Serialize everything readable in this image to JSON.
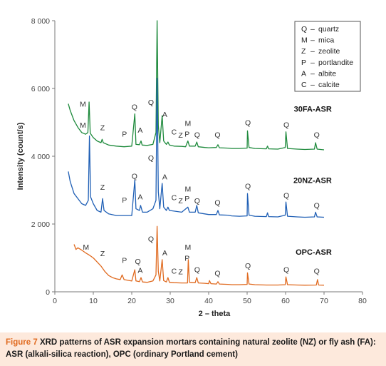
{
  "caption": {
    "label": "Figure 7",
    "line1": "XRD patterns of ASR expansion mortars containing natural zeolite (NZ) or fly ash (FA):",
    "line2": "ASR (alkali-silica reaction), OPC (ordinary Portland cement)"
  },
  "chart_data": {
    "type": "line",
    "xlabel": "2 – theta",
    "ylabel": "Intensity (count/s)",
    "xlim": [
      0,
      80
    ],
    "ylim": [
      0,
      8000
    ],
    "xticks": [
      0,
      10,
      20,
      30,
      40,
      50,
      60,
      70,
      80
    ],
    "yticks": [
      0,
      2000,
      4000,
      6000,
      8000
    ],
    "ytick_labels": [
      "0",
      "2 000",
      "4 000",
      "6 000",
      "8 000"
    ],
    "grid": false,
    "legend_position": "top-right",
    "legend": [
      {
        "symbol": "Q",
        "name": "quartz"
      },
      {
        "symbol": "M",
        "name": "mica"
      },
      {
        "symbol": "Z",
        "name": "zeolite"
      },
      {
        "symbol": "P",
        "name": "portlandite"
      },
      {
        "symbol": "A",
        "name": "albite"
      },
      {
        "symbol": "C",
        "name": "calcite"
      }
    ],
    "series": [
      {
        "name": "30FA-ASR",
        "color": "#1e8a3c",
        "points": [
          [
            3.5,
            5550
          ],
          [
            4,
            5350
          ],
          [
            5,
            5050
          ],
          [
            6,
            4850
          ],
          [
            7,
            4700
          ],
          [
            8,
            4650
          ],
          [
            8.6,
            4700
          ],
          [
            8.9,
            5600
          ],
          [
            9.2,
            4680
          ],
          [
            10,
            4550
          ],
          [
            11,
            4450
          ],
          [
            12,
            4400
          ],
          [
            12.3,
            4500
          ],
          [
            12.6,
            4400
          ],
          [
            14,
            4330
          ],
          [
            16,
            4300
          ],
          [
            18,
            4280
          ],
          [
            20,
            4300
          ],
          [
            20.8,
            5250
          ],
          [
            21.1,
            4350
          ],
          [
            22,
            4340
          ],
          [
            22.4,
            4450
          ],
          [
            22.7,
            4330
          ],
          [
            24,
            4320
          ],
          [
            25.5,
            4350
          ],
          [
            26.3,
            4700
          ],
          [
            26.6,
            8000
          ],
          [
            26.9,
            4900
          ],
          [
            27.3,
            4400
          ],
          [
            27.9,
            5200
          ],
          [
            28.3,
            4450
          ],
          [
            29,
            4350
          ],
          [
            29.4,
            4420
          ],
          [
            29.8,
            4330
          ],
          [
            31,
            4300
          ],
          [
            33,
            4290
          ],
          [
            34,
            4280
          ],
          [
            34.6,
            4450
          ],
          [
            35,
            4300
          ],
          [
            36.5,
            4300
          ],
          [
            36.9,
            4420
          ],
          [
            37.3,
            4280
          ],
          [
            39,
            4260
          ],
          [
            40,
            4250
          ],
          [
            42,
            4260
          ],
          [
            42.4,
            4340
          ],
          [
            42.8,
            4250
          ],
          [
            45,
            4240
          ],
          [
            46,
            4230
          ],
          [
            48,
            4230
          ],
          [
            50,
            4240
          ],
          [
            50.1,
            4750
          ],
          [
            50.5,
            4260
          ],
          [
            52,
            4230
          ],
          [
            55,
            4220
          ],
          [
            55.3,
            4300
          ],
          [
            55.6,
            4220
          ],
          [
            58,
            4210
          ],
          [
            59.9,
            4260
          ],
          [
            60.1,
            4720
          ],
          [
            60.5,
            4230
          ],
          [
            63,
            4210
          ],
          [
            65,
            4200
          ],
          [
            67.5,
            4210
          ],
          [
            67.8,
            4400
          ],
          [
            68.2,
            4210
          ],
          [
            70,
            4190
          ]
        ]
      },
      {
        "name": "20NZ-ASR",
        "color": "#1f5fb5",
        "points": [
          [
            3.5,
            3550
          ],
          [
            4,
            3250
          ],
          [
            5,
            2900
          ],
          [
            6,
            2750
          ],
          [
            7,
            2600
          ],
          [
            8,
            2550
          ],
          [
            8.7,
            2700
          ],
          [
            9,
            4600
          ],
          [
            9.3,
            2800
          ],
          [
            10,
            2600
          ],
          [
            11,
            2400
          ],
          [
            12,
            2350
          ],
          [
            12.4,
            2750
          ],
          [
            12.8,
            2400
          ],
          [
            14,
            2300
          ],
          [
            16,
            2250
          ],
          [
            18,
            2250
          ],
          [
            20,
            2250
          ],
          [
            20.8,
            3300
          ],
          [
            21.1,
            2450
          ],
          [
            22,
            2400
          ],
          [
            22.3,
            2550
          ],
          [
            22.8,
            2350
          ],
          [
            24,
            2350
          ],
          [
            25.5,
            2450
          ],
          [
            26.3,
            2700
          ],
          [
            26.6,
            6300
          ],
          [
            26.9,
            2950
          ],
          [
            27.3,
            2450
          ],
          [
            27.9,
            3200
          ],
          [
            28.3,
            2500
          ],
          [
            29,
            2400
          ],
          [
            29.4,
            2500
          ],
          [
            29.8,
            2400
          ],
          [
            31,
            2380
          ],
          [
            33,
            2350
          ],
          [
            34.6,
            2500
          ],
          [
            35,
            2350
          ],
          [
            36.5,
            2350
          ],
          [
            36.9,
            2550
          ],
          [
            37.3,
            2330
          ],
          [
            39,
            2300
          ],
          [
            40,
            2280
          ],
          [
            42,
            2280
          ],
          [
            42.4,
            2400
          ],
          [
            42.8,
            2270
          ],
          [
            45,
            2260
          ],
          [
            46,
            2240
          ],
          [
            48,
            2230
          ],
          [
            50,
            2240
          ],
          [
            50.1,
            2900
          ],
          [
            50.5,
            2260
          ],
          [
            52,
            2230
          ],
          [
            55,
            2220
          ],
          [
            55.3,
            2330
          ],
          [
            55.6,
            2220
          ],
          [
            58,
            2210
          ],
          [
            59.9,
            2260
          ],
          [
            60.1,
            2650
          ],
          [
            60.5,
            2230
          ],
          [
            63,
            2210
          ],
          [
            65,
            2200
          ],
          [
            67.5,
            2210
          ],
          [
            67.8,
            2350
          ],
          [
            68.2,
            2210
          ],
          [
            70,
            2200
          ]
        ]
      },
      {
        "name": "OPC-ASR",
        "color": "#e06a1f",
        "points": [
          [
            5,
            1400
          ],
          [
            5.5,
            1250
          ],
          [
            6,
            1300
          ],
          [
            7,
            1230
          ],
          [
            8,
            1150
          ],
          [
            9,
            1080
          ],
          [
            10,
            1000
          ],
          [
            11,
            880
          ],
          [
            12,
            760
          ],
          [
            13,
            600
          ],
          [
            14,
            480
          ],
          [
            15,
            420
          ],
          [
            16,
            380
          ],
          [
            17,
            360
          ],
          [
            17.5,
            500
          ],
          [
            18,
            360
          ],
          [
            19,
            340
          ],
          [
            20,
            320
          ],
          [
            20.8,
            650
          ],
          [
            21.1,
            320
          ],
          [
            22,
            300
          ],
          [
            22.4,
            420
          ],
          [
            22.8,
            290
          ],
          [
            24,
            280
          ],
          [
            25.5,
            320
          ],
          [
            26.3,
            500
          ],
          [
            26.6,
            1930
          ],
          [
            26.9,
            600
          ],
          [
            27.3,
            320
          ],
          [
            27.9,
            950
          ],
          [
            28.3,
            330
          ],
          [
            29,
            290
          ],
          [
            29.4,
            420
          ],
          [
            29.8,
            280
          ],
          [
            31,
            270
          ],
          [
            33,
            260
          ],
          [
            34.5,
            260
          ],
          [
            34.7,
            950
          ],
          [
            35,
            280
          ],
          [
            36.5,
            270
          ],
          [
            36.9,
            420
          ],
          [
            37.3,
            260
          ],
          [
            39,
            250
          ],
          [
            40,
            240
          ],
          [
            40.2,
            330
          ],
          [
            40.6,
            240
          ],
          [
            42,
            230
          ],
          [
            42.4,
            300
          ],
          [
            42.8,
            230
          ],
          [
            45,
            220
          ],
          [
            46,
            210
          ],
          [
            48,
            210
          ],
          [
            50,
            220
          ],
          [
            50.1,
            560
          ],
          [
            50.5,
            230
          ],
          [
            52,
            210
          ],
          [
            55,
            200
          ],
          [
            58,
            200
          ],
          [
            59.9,
            210
          ],
          [
            60.1,
            440
          ],
          [
            60.5,
            210
          ],
          [
            63,
            200
          ],
          [
            65,
            195
          ],
          [
            68,
            200
          ],
          [
            68.3,
            360
          ],
          [
            68.6,
            200
          ],
          [
            70,
            195
          ]
        ]
      }
    ],
    "series_labels": [
      {
        "text": "30FA-ASR",
        "x": 72,
        "y": 5400
      },
      {
        "text": "20NZ-ASR",
        "x": 72,
        "y": 3300
      },
      {
        "text": "OPC-ASR",
        "x": 72,
        "y": 1180
      }
    ],
    "annotations": [
      {
        "text": "M",
        "x": 7.3,
        "y": 5550
      },
      {
        "text": "Z",
        "x": 12.4,
        "y": 4850
      },
      {
        "text": "P",
        "x": 18.1,
        "y": 4660
      },
      {
        "text": "Q",
        "x": 20.7,
        "y": 5460
      },
      {
        "text": "A",
        "x": 22.2,
        "y": 4780
      },
      {
        "text": "Q",
        "x": 25.0,
        "y": 5600
      },
      {
        "text": "A",
        "x": 28.6,
        "y": 5240
      },
      {
        "text": "C",
        "x": 31.0,
        "y": 4730
      },
      {
        "text": "Z",
        "x": 32.7,
        "y": 4630
      },
      {
        "text": "P",
        "x": 34.4,
        "y": 4660
      },
      {
        "text": "M",
        "x": 34.6,
        "y": 4980
      },
      {
        "text": "Q",
        "x": 37.0,
        "y": 4640
      },
      {
        "text": "Q",
        "x": 42.3,
        "y": 4640
      },
      {
        "text": "Q",
        "x": 50.2,
        "y": 5000
      },
      {
        "text": "Q",
        "x": 60.2,
        "y": 4940
      },
      {
        "text": "Q",
        "x": 68.1,
        "y": 4640
      },
      {
        "text": "M",
        "x": 7.3,
        "y": 4930
      },
      {
        "text": "Z",
        "x": 12.4,
        "y": 3090
      },
      {
        "text": "P",
        "x": 18.1,
        "y": 2720
      },
      {
        "text": "Q",
        "x": 20.7,
        "y": 3420
      },
      {
        "text": "A",
        "x": 22.2,
        "y": 2810
      },
      {
        "text": "Q",
        "x": 25.0,
        "y": 3960
      },
      {
        "text": "A",
        "x": 28.6,
        "y": 3400
      },
      {
        "text": "C",
        "x": 31.0,
        "y": 2790
      },
      {
        "text": "Z",
        "x": 32.7,
        "y": 2700
      },
      {
        "text": "P",
        "x": 34.4,
        "y": 2760
      },
      {
        "text": "M",
        "x": 34.6,
        "y": 3040
      },
      {
        "text": "Q",
        "x": 37.0,
        "y": 2700
      },
      {
        "text": "Q",
        "x": 42.3,
        "y": 2640
      },
      {
        "text": "Q",
        "x": 50.2,
        "y": 3130
      },
      {
        "text": "Q",
        "x": 60.2,
        "y": 2850
      },
      {
        "text": "Q",
        "x": 68.1,
        "y": 2560
      },
      {
        "text": "M",
        "x": 8.1,
        "y": 1330
      },
      {
        "text": "Z",
        "x": 12.4,
        "y": 1140
      },
      {
        "text": "P",
        "x": 18.1,
        "y": 940
      },
      {
        "text": "Q",
        "x": 21.6,
        "y": 910
      },
      {
        "text": "A",
        "x": 22.2,
        "y": 640
      },
      {
        "text": "Q",
        "x": 25.0,
        "y": 1570
      },
      {
        "text": "A",
        "x": 28.6,
        "y": 1160
      },
      {
        "text": "C",
        "x": 31.0,
        "y": 620
      },
      {
        "text": "Z",
        "x": 32.7,
        "y": 600
      },
      {
        "text": "M",
        "x": 34.6,
        "y": 1330
      },
      {
        "text": "P",
        "x": 34.4,
        "y": 1000
      },
      {
        "text": "Q",
        "x": 37.0,
        "y": 660
      },
      {
        "text": "Q",
        "x": 42.3,
        "y": 560
      },
      {
        "text": "Q",
        "x": 50.2,
        "y": 780
      },
      {
        "text": "Q",
        "x": 60.2,
        "y": 660
      },
      {
        "text": "Q",
        "x": 68.1,
        "y": 620
      }
    ]
  }
}
